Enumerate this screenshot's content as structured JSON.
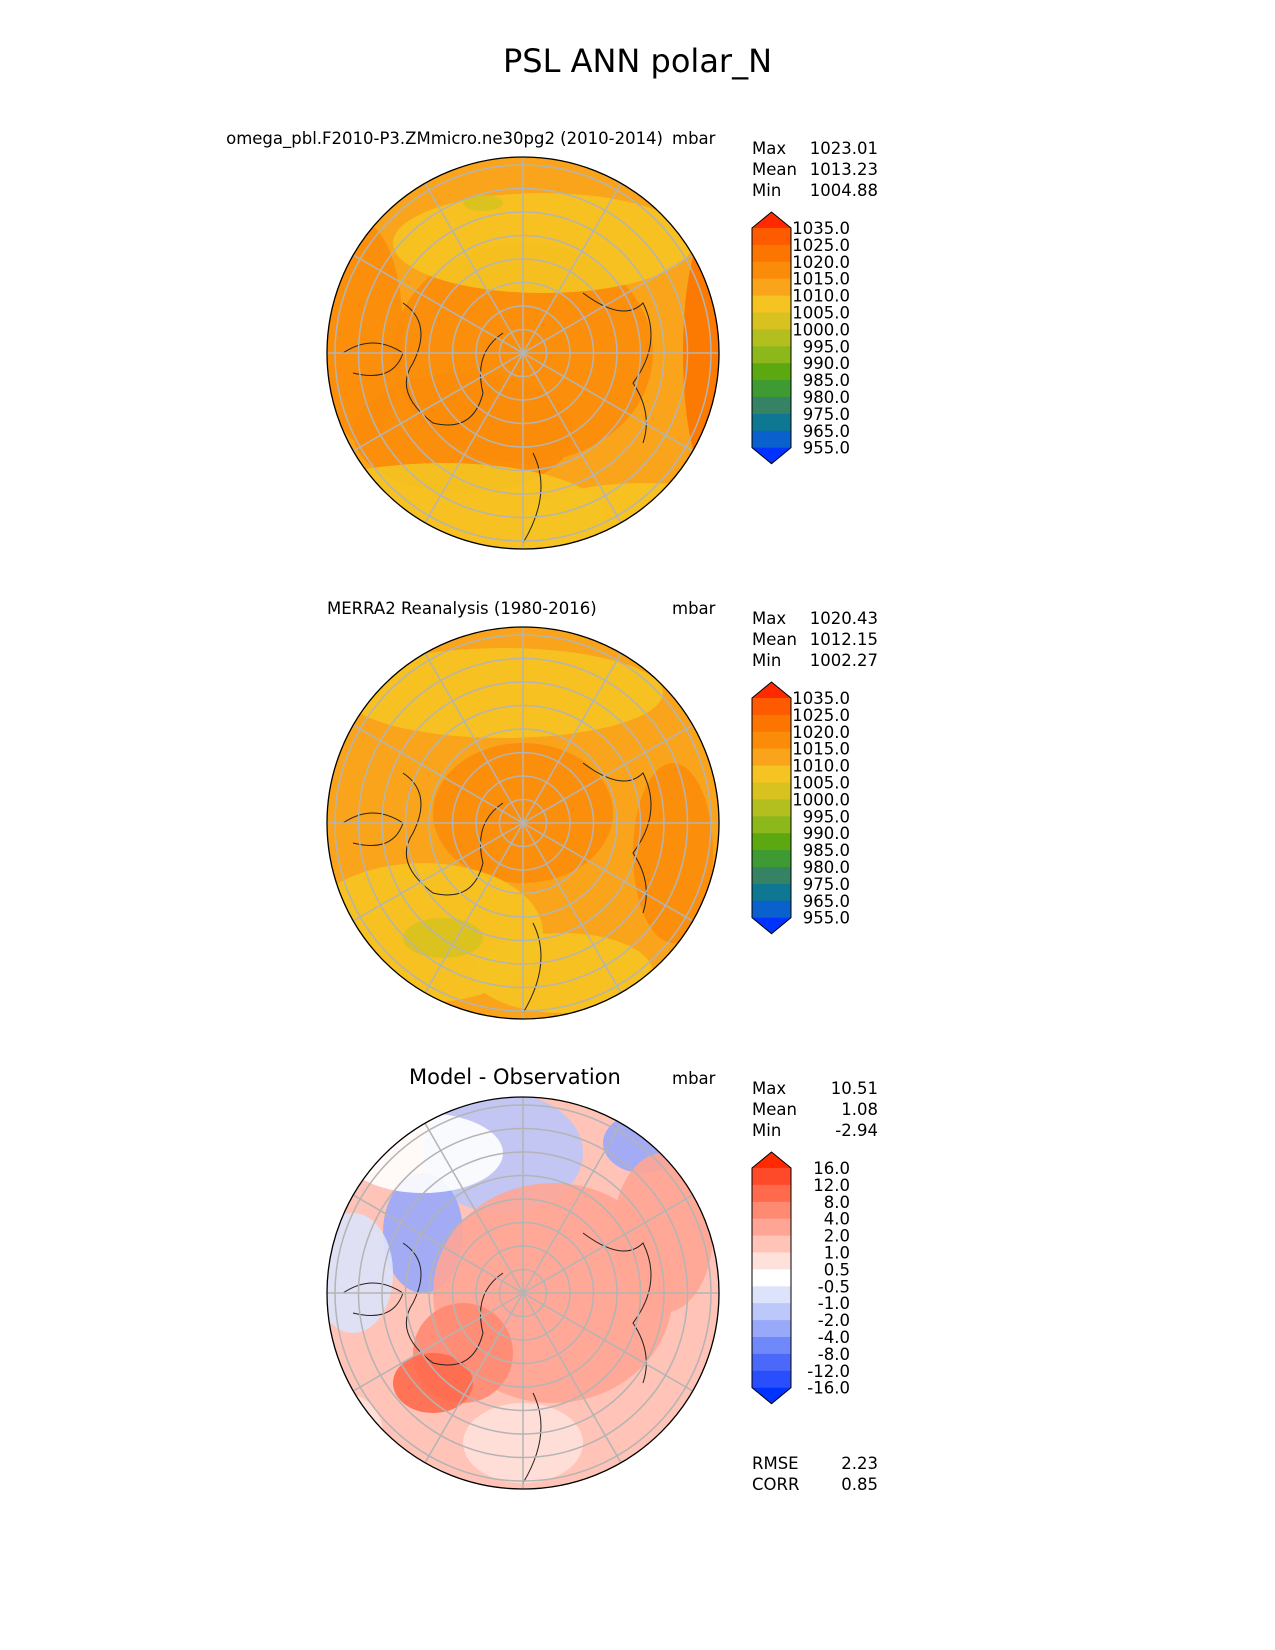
{
  "title": "PSL ANN polar_N",
  "panels": [
    {
      "left_title": "omega_pbl.F2010-P3.ZMmicro.ne30pg2 (2010-2014)",
      "units": "mbar",
      "stats": {
        "max_label": "Max",
        "max": "1023.01",
        "mean_label": "Mean",
        "mean": "1013.23",
        "min_label": "Min",
        "min": "1004.88"
      },
      "base_color": "#f9a41b"
    },
    {
      "left_title": "MERRA2 Reanalysis (1980-2016)",
      "units": "mbar",
      "stats": {
        "max_label": "Max",
        "max": "1020.43",
        "mean_label": "Mean",
        "mean": "1012.15",
        "min_label": "Min",
        "min": "1002.27"
      },
      "base_color": "#f9a41b"
    },
    {
      "center_title": "Model - Observation",
      "units": "mbar",
      "stats": {
        "max_label": "Max",
        "max": "10.51",
        "mean_label": "Mean",
        "mean": "1.08",
        "min_label": "Min",
        "min": "-2.94"
      },
      "metrics": {
        "rmse_label": "RMSE",
        "rmse": "2.23",
        "corr_label": "CORR",
        "corr": "0.85"
      },
      "base_color": "#ffc3b7"
    }
  ],
  "colorbars": {
    "field": {
      "ticks": [
        "1035.0",
        "1025.0",
        "1020.0",
        "1015.0",
        "1010.0",
        "1005.0",
        "1000.0",
        "995.0",
        "990.0",
        "985.0",
        "980.0",
        "975.0",
        "965.0",
        "955.0"
      ],
      "colors": [
        "#ff2a00",
        "#fe5a00",
        "#fc7500",
        "#fb8c0a",
        "#f9a41b",
        "#f5c422",
        "#d8c21f",
        "#b2bf1f",
        "#8cb81c",
        "#5ca811",
        "#3e9a33",
        "#368264",
        "#0e7893",
        "#0a60cc",
        "#0033ff"
      ]
    },
    "diff": {
      "ticks": [
        "16.0",
        "12.0",
        "8.0",
        "4.0",
        "2.0",
        "1.0",
        "0.5",
        "-0.5",
        "-1.0",
        "-2.0",
        "-4.0",
        "-8.0",
        "-12.0",
        "-16.0"
      ],
      "colors": [
        "#ff2a00",
        "#ff4a2a",
        "#ff6a4c",
        "#ff8a72",
        "#ffa595",
        "#ffc3b7",
        "#ffe1dc",
        "#ffffff",
        "#dde3fb",
        "#bcc7fa",
        "#98a9f9",
        "#7089fa",
        "#4a69fb",
        "#2a4dfd",
        "#0033ff"
      ]
    }
  },
  "map_colors": {
    "grid": "#b4b4b4",
    "coast": "#222222"
  }
}
